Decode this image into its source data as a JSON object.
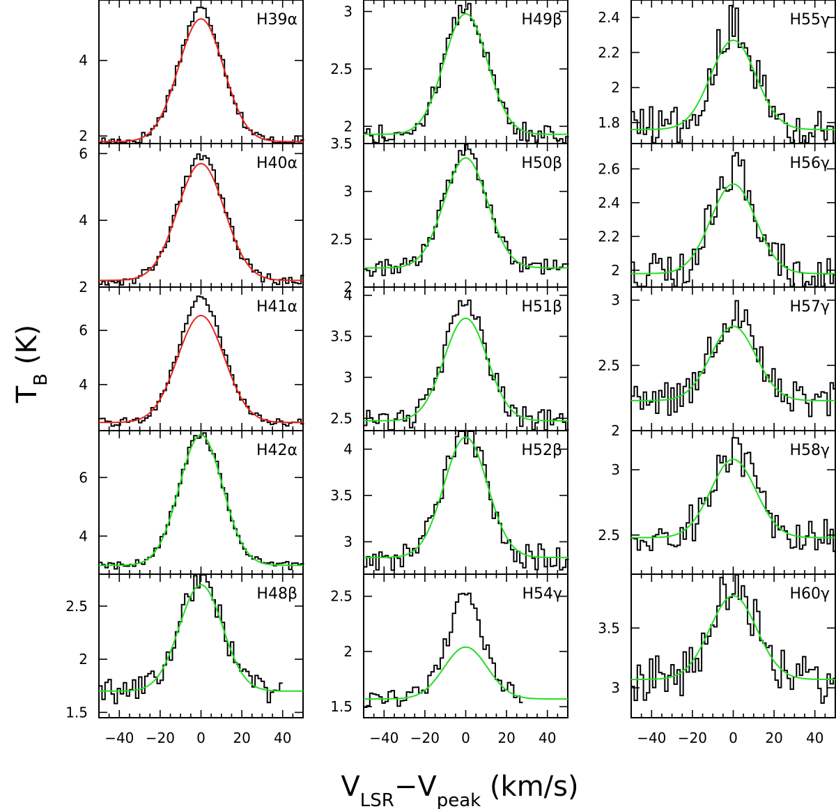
{
  "chart_data": {
    "type": "line",
    "description_title": "",
    "xlabel": "V_LSR−V_peak (km/s)",
    "ylabel": "T_B (K)",
    "xlim": [
      -50,
      50
    ],
    "x_ticks": [
      -40,
      -20,
      0,
      20,
      40
    ],
    "x_tick_labels": [
      "−40",
      "−20",
      "0",
      "20",
      "40"
    ],
    "colors": {
      "alpha_fit_red": "#e8231c",
      "alpha_fit_green": "#22dd22",
      "data": "#000000"
    },
    "panels": [
      {
        "label": "H39α",
        "column": 0,
        "row": 0,
        "ylim": [
          1.8,
          5.6
        ],
        "yticks": [
          2,
          4
        ],
        "ytick_labels": [
          "2",
          "4"
        ],
        "fit_color": "#e8231c",
        "fit": {
          "base": 1.85,
          "amp": 3.25,
          "fwhm": 26
        },
        "noise": 0.15,
        "excess": 0.25
      },
      {
        "label": "H40α",
        "column": 0,
        "row": 1,
        "ylim": [
          2.0,
          6.3
        ],
        "yticks": [
          2,
          4,
          6
        ],
        "ytick_labels": [
          "2",
          "4",
          "6"
        ],
        "fit_color": "#e8231c",
        "fit": {
          "base": 2.2,
          "amp": 3.5,
          "fwhm": 27
        },
        "noise": 0.15,
        "excess": 0.2
      },
      {
        "label": "H41α",
        "column": 0,
        "row": 2,
        "ylim": [
          2.3,
          7.6
        ],
        "yticks": [
          4,
          6
        ],
        "ytick_labels": [
          "4",
          "6"
        ],
        "fit_color": "#e8231c",
        "fit": {
          "base": 2.6,
          "amp": 3.95,
          "fwhm": 27
        },
        "noise": 0.15,
        "excess": 0.6
      },
      {
        "label": "H42α",
        "column": 0,
        "row": 3,
        "ylim": [
          2.7,
          7.6
        ],
        "yticks": [
          4,
          6
        ],
        "ytick_labels": [
          "4",
          "6"
        ],
        "fit_color": "#22dd22",
        "fit": {
          "base": 3.0,
          "amp": 4.45,
          "fwhm": 25
        },
        "noise": 0.15,
        "excess": 0.05
      },
      {
        "label": "H48β",
        "column": 0,
        "row": 4,
        "ylim": [
          1.45,
          2.8
        ],
        "yticks": [
          1.5,
          2,
          2.5
        ],
        "ytick_labels": [
          "1.5",
          "2",
          "2.5"
        ],
        "fit_color": "#22dd22",
        "fit": {
          "base": 1.7,
          "amp": 1.0,
          "fwhm": 25
        },
        "noise": 0.12,
        "excess": 0.05,
        "xmax_data": 40
      },
      {
        "label": "H49β",
        "column": 1,
        "row": 0,
        "ylim": [
          1.85,
          3.1
        ],
        "yticks": [
          2,
          2.5,
          3
        ],
        "ytick_labels": [
          "2",
          "2.5",
          "3"
        ],
        "fit_color": "#22dd22",
        "fit": {
          "base": 1.93,
          "amp": 1.05,
          "fwhm": 25
        },
        "noise": 0.09,
        "excess": 0.05
      },
      {
        "label": "H50β",
        "column": 1,
        "row": 1,
        "ylim": [
          2.0,
          3.5
        ],
        "yticks": [
          2,
          2.5,
          3,
          3.5
        ],
        "ytick_labels": [
          "2",
          "2.5",
          "3",
          "3.5"
        ],
        "fit_color": "#22dd22",
        "fit": {
          "base": 2.2,
          "amp": 1.15,
          "fwhm": 25
        },
        "noise": 0.09,
        "excess": 0.05
      },
      {
        "label": "H51β",
        "column": 1,
        "row": 2,
        "ylim": [
          2.35,
          4.1
        ],
        "yticks": [
          2.5,
          3,
          3.5,
          4
        ],
        "ytick_labels": [
          "2.5",
          "3",
          "3.5",
          "4"
        ],
        "fit_color": "#22dd22",
        "fit": {
          "base": 2.47,
          "amp": 1.25,
          "fwhm": 25
        },
        "noise": 0.14,
        "excess": 0.15
      },
      {
        "label": "H52β",
        "column": 1,
        "row": 3,
        "ylim": [
          2.65,
          4.2
        ],
        "yticks": [
          3,
          3.5,
          4
        ],
        "ytick_labels": [
          "3",
          "3.5",
          "4"
        ],
        "fit_color": "#22dd22",
        "fit": {
          "base": 2.83,
          "amp": 1.3,
          "fwhm": 25
        },
        "noise": 0.15,
        "excess": 0.05
      },
      {
        "label": "H54γ",
        "column": 1,
        "row": 4,
        "ylim": [
          1.4,
          2.7
        ],
        "yticks": [
          1.5,
          2,
          2.5
        ],
        "ytick_labels": [
          "1.5",
          "2",
          "2.5"
        ],
        "fit_color": "#22dd22",
        "fit": {
          "base": 1.57,
          "amp": 0.47,
          "fwhm": 25
        },
        "noise": 0.08,
        "excess": 0.45,
        "xmax_data": 28
      },
      {
        "label": "H55γ",
        "column": 2,
        "row": 0,
        "ylim": [
          1.68,
          2.5
        ],
        "yticks": [
          1.8,
          2,
          2.2,
          2.4
        ],
        "ytick_labels": [
          "1.8",
          "2",
          "2.2",
          "2.4"
        ],
        "fit_color": "#22dd22",
        "fit": {
          "base": 1.76,
          "amp": 0.51,
          "fwhm": 26
        },
        "noise": 0.13,
        "excess": 0.1
      },
      {
        "label": "H56γ",
        "column": 2,
        "row": 1,
        "ylim": [
          1.9,
          2.75
        ],
        "yticks": [
          2,
          2.2,
          2.4,
          2.6
        ],
        "ytick_labels": [
          "2",
          "2.2",
          "2.4",
          "2.6"
        ],
        "fit_color": "#22dd22",
        "fit": {
          "base": 1.98,
          "amp": 0.53,
          "fwhm": 26
        },
        "noise": 0.13,
        "excess": 0.1
      },
      {
        "label": "H57γ",
        "column": 2,
        "row": 2,
        "ylim": [
          2.0,
          3.1
        ],
        "yticks": [
          2,
          2.5,
          3
        ],
        "ytick_labels": [
          "2",
          "2.5",
          "3"
        ],
        "fit_color": "#22dd22",
        "fit": {
          "base": 2.23,
          "amp": 0.57,
          "fwhm": 26
        },
        "noise": 0.14,
        "excess": 0.1
      },
      {
        "label": "H58γ",
        "column": 2,
        "row": 3,
        "ylim": [
          2.2,
          3.3
        ],
        "yticks": [
          2.5,
          3
        ],
        "ytick_labels": [
          "2.5",
          "3"
        ],
        "fit_color": "#22dd22",
        "fit": {
          "base": 2.48,
          "amp": 0.6,
          "fwhm": 26
        },
        "noise": 0.16,
        "excess": 0.05
      },
      {
        "label": "H60γ",
        "column": 2,
        "row": 4,
        "ylim": [
          2.75,
          3.95
        ],
        "yticks": [
          3,
          3.5
        ],
        "ytick_labels": [
          "3",
          "3.5"
        ],
        "fit_color": "#22dd22",
        "fit": {
          "base": 3.07,
          "amp": 0.7,
          "fwhm": 27
        },
        "noise": 0.2,
        "excess": 0.05
      }
    ]
  }
}
